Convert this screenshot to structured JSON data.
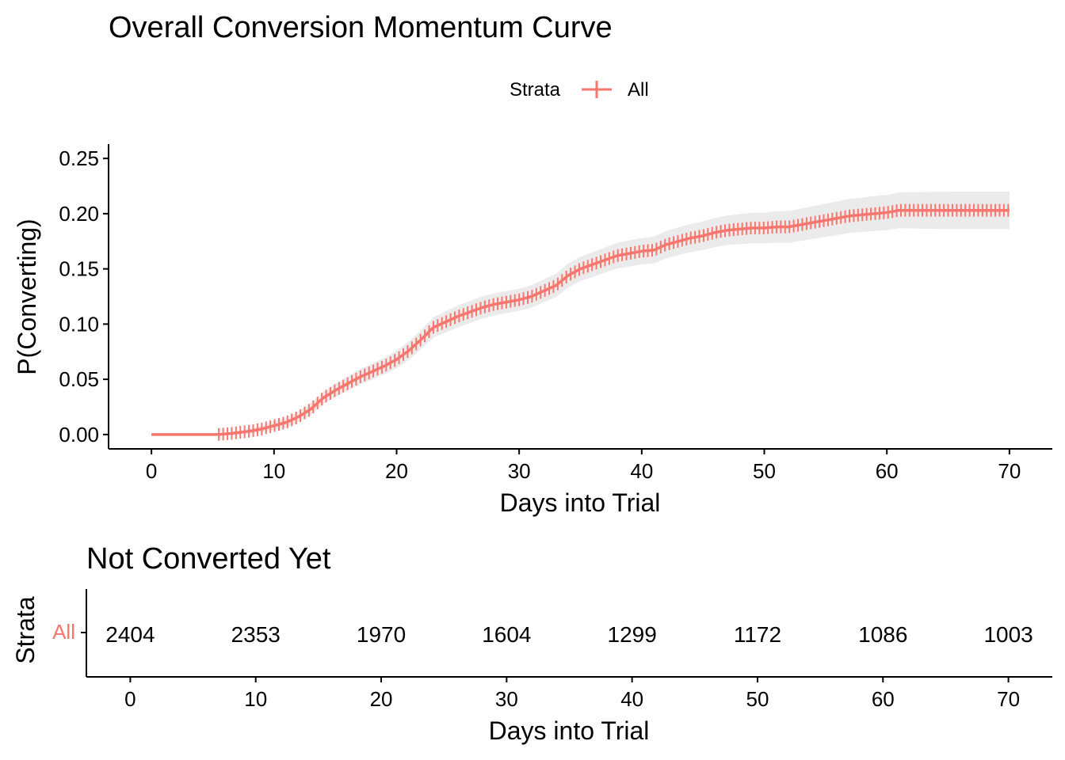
{
  "chart_data": [
    {
      "type": "line",
      "title": "Overall Conversion Momentum Curve",
      "xlabel": "Days into Trial",
      "ylabel": "P(Converting)",
      "xlim": [
        -3.5,
        73.5
      ],
      "ylim": [
        -0.013,
        0.263
      ],
      "x_ticks": [
        0,
        10,
        20,
        30,
        40,
        50,
        60,
        70
      ],
      "y_ticks": [
        0.0,
        0.05,
        0.1,
        0.15,
        0.2,
        0.25
      ],
      "y_tick_labels": [
        "0.00",
        "0.05",
        "0.10",
        "0.15",
        "0.20",
        "0.25"
      ],
      "legend": {
        "title": "Strata",
        "placement": "top",
        "entries": [
          "All"
        ]
      },
      "grid": false,
      "series": [
        {
          "name": "All",
          "color": "#F8766D",
          "confidence_band_color": "#EBEBEB",
          "points": [
            [
              0,
              0.0
            ],
            [
              5.5,
              0.0
            ],
            [
              6.5,
              0.001
            ],
            [
              8,
              0.003
            ],
            [
              9,
              0.005
            ],
            [
              10,
              0.008
            ],
            [
              11,
              0.011
            ],
            [
              12,
              0.016
            ],
            [
              13,
              0.023
            ],
            [
              14,
              0.033
            ],
            [
              15,
              0.04
            ],
            [
              16,
              0.046
            ],
            [
              17,
              0.052
            ],
            [
              18,
              0.057
            ],
            [
              19,
              0.062
            ],
            [
              20,
              0.068
            ],
            [
              21,
              0.076
            ],
            [
              22,
              0.086
            ],
            [
              23,
              0.097
            ],
            [
              24,
              0.102
            ],
            [
              25,
              0.107
            ],
            [
              26,
              0.111
            ],
            [
              27,
              0.115
            ],
            [
              28,
              0.118
            ],
            [
              29,
              0.12
            ],
            [
              30,
              0.122
            ],
            [
              31,
              0.125
            ],
            [
              32,
              0.13
            ],
            [
              33,
              0.135
            ],
            [
              34,
              0.144
            ],
            [
              35,
              0.15
            ],
            [
              36,
              0.154
            ],
            [
              37,
              0.158
            ],
            [
              38,
              0.162
            ],
            [
              39,
              0.164
            ],
            [
              40,
              0.166
            ],
            [
              41,
              0.167
            ],
            [
              42,
              0.172
            ],
            [
              43,
              0.175
            ],
            [
              44,
              0.178
            ],
            [
              45,
              0.18
            ],
            [
              46,
              0.183
            ],
            [
              47,
              0.185
            ],
            [
              48,
              0.186
            ],
            [
              49,
              0.187
            ],
            [
              50,
              0.187
            ],
            [
              51,
              0.188
            ],
            [
              52,
              0.188
            ],
            [
              53,
              0.19
            ],
            [
              54,
              0.192
            ],
            [
              55,
              0.194
            ],
            [
              56,
              0.196
            ],
            [
              57,
              0.198
            ],
            [
              58,
              0.199
            ],
            [
              59,
              0.2
            ],
            [
              60,
              0.201
            ],
            [
              61,
              0.203
            ],
            [
              62,
              0.203
            ],
            [
              65,
              0.203
            ],
            [
              70,
              0.203
            ]
          ],
          "band_halfwidth": [
            [
              0,
              0.0
            ],
            [
              6,
              0.001
            ],
            [
              10,
              0.004
            ],
            [
              15,
              0.006
            ],
            [
              20,
              0.008
            ],
            [
              25,
              0.01
            ],
            [
              30,
              0.01
            ],
            [
              35,
              0.011
            ],
            [
              40,
              0.012
            ],
            [
              45,
              0.013
            ],
            [
              50,
              0.014
            ],
            [
              55,
              0.015
            ],
            [
              60,
              0.016
            ],
            [
              65,
              0.017
            ],
            [
              70,
              0.017
            ]
          ]
        }
      ]
    },
    {
      "type": "table",
      "title": "Not Converted Yet",
      "xlabel": "Days into Trial",
      "ylabel": "Strata",
      "xlim": [
        -3.5,
        73.5
      ],
      "x_ticks": [
        0,
        10,
        20,
        30,
        40,
        50,
        60,
        70
      ],
      "row_label": "All",
      "row_color": "#F8766D",
      "x": [
        0,
        10,
        20,
        30,
        40,
        50,
        60,
        70
      ],
      "values": [
        2404,
        2353,
        1970,
        1604,
        1299,
        1172,
        1086,
        1003
      ]
    }
  ]
}
